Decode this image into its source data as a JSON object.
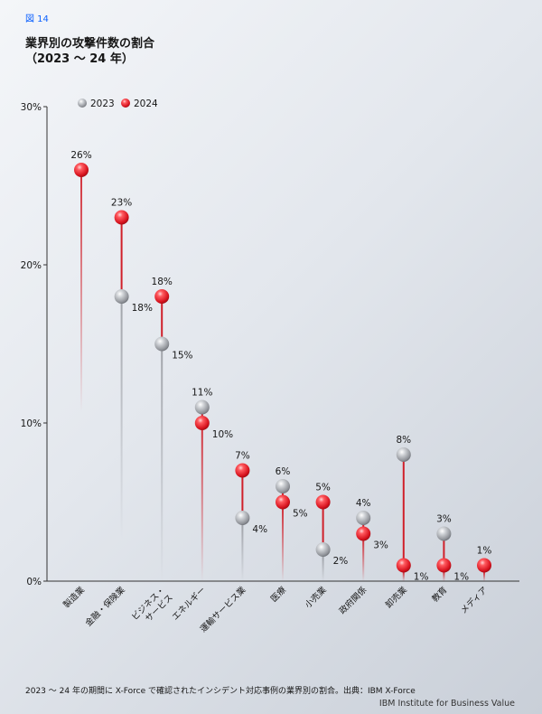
{
  "figure_label": "図 14",
  "title_line1": "業界別の攻撃件数の割合",
  "title_line2": "（2023 ～ 24 年）",
  "footnote": "2023 ～ 24 年の期間に X-Force で確認されたインシデント対応事例の業界別の割合。出典：IBM X-Force",
  "brand": "IBM Institute for Business Value",
  "colors": {
    "2023": "#a8abb1",
    "2024": "#e8202a",
    "connector": "#d0202a"
  },
  "chart_data": {
    "type": "scatter",
    "title": "業界別の攻撃件数の割合",
    "subtitle": "（2023 ～ 24 年）",
    "ylim": [
      0,
      30
    ],
    "yticks": [
      0,
      10,
      20,
      30
    ],
    "ytick_labels": [
      "0%",
      "10%",
      "20%",
      "30%"
    ],
    "legend_position": "top-left",
    "categories": [
      "製造業",
      "金融・保険業",
      "ビジネス・サービス",
      "エネルギー",
      "運輸サービス業",
      "医療",
      "小売業",
      "政府関係",
      "卸売業",
      "教育",
      "メディア"
    ],
    "category_lines": [
      [
        "製造業"
      ],
      [
        "金融・保険業"
      ],
      [
        "ビジネス・",
        "サービス"
      ],
      [
        "エネルギー"
      ],
      [
        "運輸サービス業"
      ],
      [
        "医療"
      ],
      [
        "小売業"
      ],
      [
        "政府関係"
      ],
      [
        "卸売業"
      ],
      [
        "教育"
      ],
      [
        "メディア"
      ]
    ],
    "series": [
      {
        "name": "2023",
        "values": [
          26,
          18,
          15,
          11,
          4,
          6,
          2,
          4,
          8,
          3,
          1
        ]
      },
      {
        "name": "2024",
        "values": [
          26,
          23,
          18,
          10,
          7,
          5,
          5,
          3,
          1,
          1,
          1
        ]
      }
    ],
    "value_suffix": "%"
  }
}
